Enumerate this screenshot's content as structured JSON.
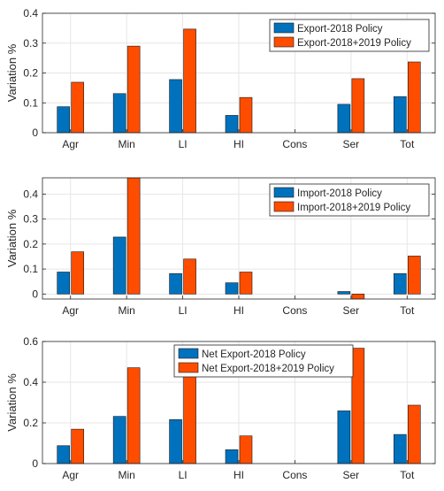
{
  "colors": {
    "series1": "#0072BD",
    "series2": "#FF4D00",
    "axis": "#262626",
    "grid": "#e6e6e6"
  },
  "chart_data": [
    {
      "type": "bar",
      "categories": [
        "Agr",
        "Min",
        "LI",
        "HI",
        "Cons",
        "Ser",
        "Tot"
      ],
      "series": [
        {
          "name": "Export-2018 Policy",
          "values": [
            0.087,
            0.131,
            0.178,
            0.058,
            0,
            0.095,
            0.121
          ]
        },
        {
          "name": "Export-2018+2019 Policy",
          "values": [
            0.169,
            0.29,
            0.347,
            0.118,
            0,
            0.181,
            0.237
          ]
        }
      ],
      "ylabel": "Variation %",
      "ylim": [
        0,
        0.4
      ],
      "yticks": [
        0,
        0.1,
        0.2,
        0.3,
        0.4
      ],
      "ytick_labels": [
        "0",
        "0.1",
        "0.2",
        "0.3",
        "0.4"
      ],
      "grid": true,
      "legend_position": "top-right"
    },
    {
      "type": "bar",
      "categories": [
        "Agr",
        "Min",
        "LI",
        "HI",
        "Cons",
        "Ser",
        "Tot"
      ],
      "series": [
        {
          "name": "Import-2018 Policy",
          "values": [
            0.088,
            0.228,
            0.082,
            0.045,
            0,
            0.01,
            0.082
          ]
        },
        {
          "name": "Import-2018+2019 Policy",
          "values": [
            0.169,
            0.48,
            0.14,
            0.088,
            0,
            -0.02,
            0.152
          ]
        }
      ],
      "ylabel": "Variation %",
      "ylim": [
        -0.02,
        0.465
      ],
      "yticks": [
        0,
        0.1,
        0.2,
        0.3,
        0.4
      ],
      "ytick_labels": [
        "0",
        "0.1",
        "0.2",
        "0.3",
        "0.4"
      ],
      "grid": true,
      "legend_position": "top-right"
    },
    {
      "type": "bar",
      "categories": [
        "Agr",
        "Min",
        "LI",
        "HI",
        "Cons",
        "Ser",
        "Tot"
      ],
      "series": [
        {
          "name": "Net Export-2018 Policy",
          "values": [
            0.088,
            0.232,
            0.216,
            0.068,
            0,
            0.259,
            0.143
          ]
        },
        {
          "name": "Net Export-2018+2019 Policy",
          "values": [
            0.169,
            0.471,
            0.427,
            0.136,
            0,
            0.567,
            0.287
          ]
        }
      ],
      "ylabel": "Variation %",
      "ylim": [
        0,
        0.6
      ],
      "yticks": [
        0,
        0.2,
        0.4,
        0.6
      ],
      "ytick_labels": [
        "0",
        "0.2",
        "0.4",
        "0.6"
      ],
      "grid": true,
      "legend_position": "top-center"
    }
  ]
}
